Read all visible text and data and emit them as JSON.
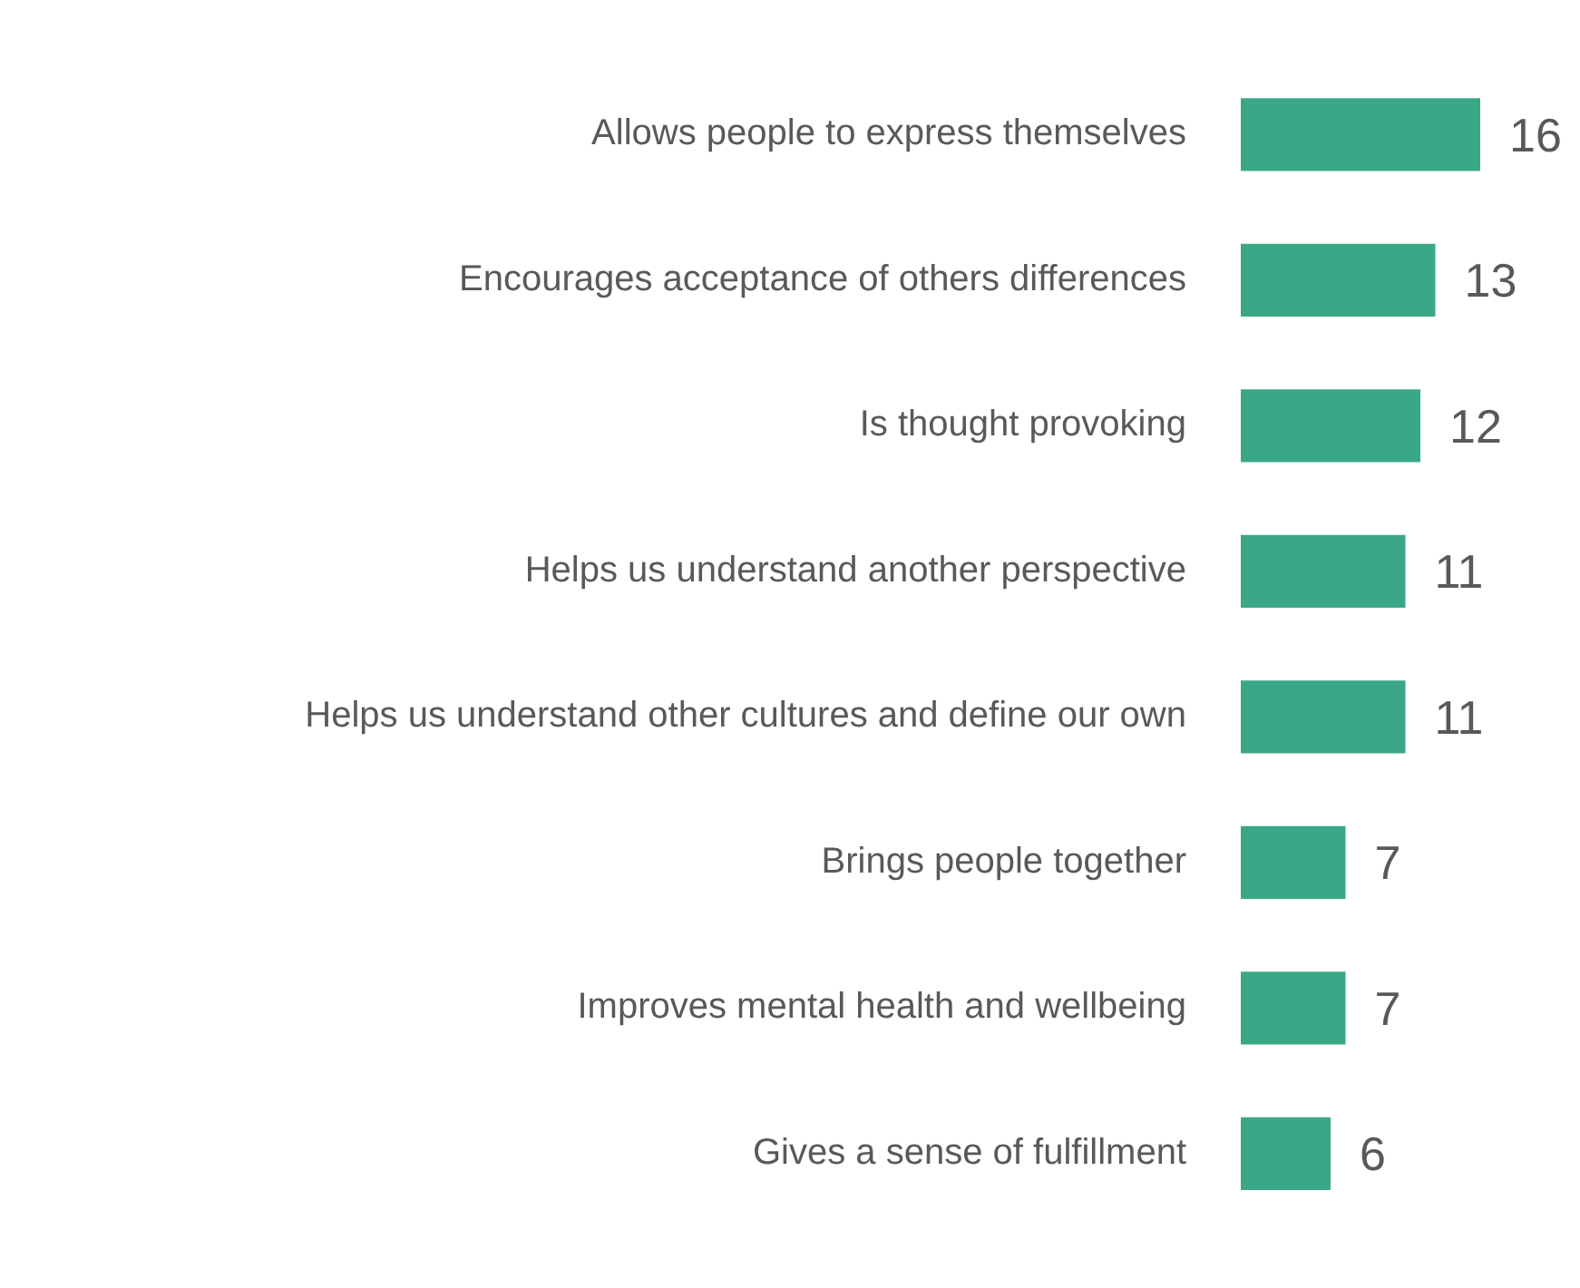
{
  "chart_data": {
    "type": "bar",
    "orientation": "horizontal",
    "categories": [
      "Allows people to express themselves",
      "Encourages acceptance of others differences",
      "Is thought provoking",
      "Helps us understand another perspective",
      "Helps us understand other cultures and define our own",
      "Brings people together",
      "Improves mental health and wellbeing",
      "Gives a sense of fulfillment"
    ],
    "values": [
      16,
      13,
      12,
      11,
      11,
      7,
      7,
      6
    ],
    "color": "#3aa887",
    "data_labels": true,
    "tick_labels": "y"
  }
}
